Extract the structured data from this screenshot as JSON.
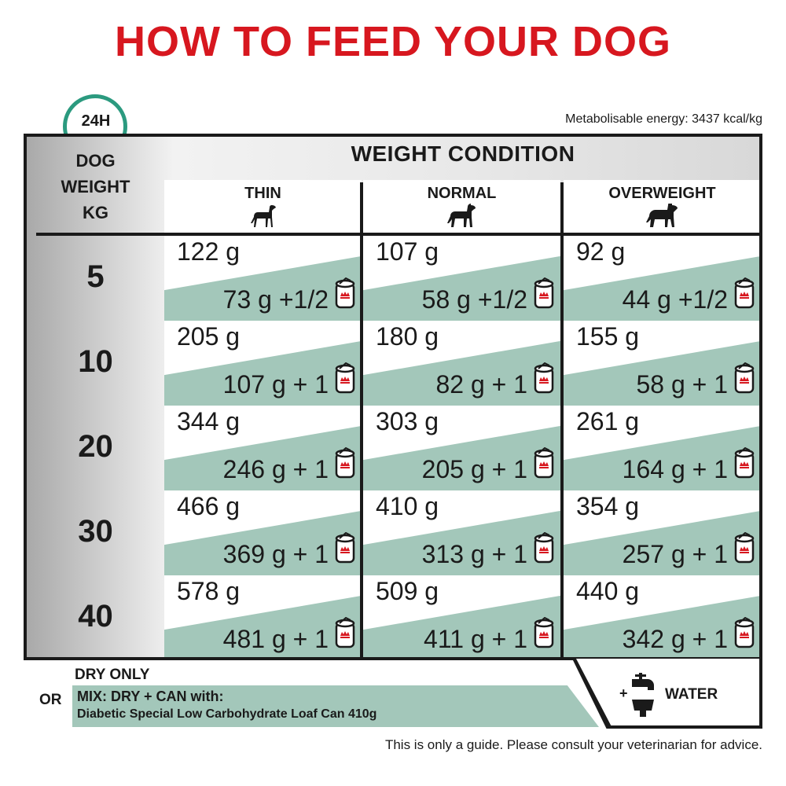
{
  "title": "HOW TO FEED YOUR DOG",
  "badge": "24H",
  "energy": "Metabolisable energy: 3437 kcal/kg",
  "header": {
    "weight_condition": "WEIGHT CONDITION",
    "dog_weight": [
      "DOG",
      "WEIGHT",
      "KG"
    ],
    "columns": [
      "THIN",
      "NORMAL",
      "OVERWEIGHT"
    ]
  },
  "rows": [
    {
      "kg": "5",
      "cells": [
        {
          "dry": "122 g",
          "mix": "73 g +1/2"
        },
        {
          "dry": "107 g",
          "mix": "58 g +1/2"
        },
        {
          "dry": "92 g",
          "mix": "44 g +1/2"
        }
      ]
    },
    {
      "kg": "10",
      "cells": [
        {
          "dry": "205 g",
          "mix": "107 g + 1"
        },
        {
          "dry": "180 g",
          "mix": "82 g + 1"
        },
        {
          "dry": "155 g",
          "mix": "58 g + 1"
        }
      ]
    },
    {
      "kg": "20",
      "cells": [
        {
          "dry": "344 g",
          "mix": "246 g + 1"
        },
        {
          "dry": "303 g",
          "mix": "205 g + 1"
        },
        {
          "dry": "261 g",
          "mix": "164 g + 1"
        }
      ]
    },
    {
      "kg": "30",
      "cells": [
        {
          "dry": "466 g",
          "mix": "369 g + 1"
        },
        {
          "dry": "410 g",
          "mix": "313 g + 1"
        },
        {
          "dry": "354 g",
          "mix": "257 g + 1"
        }
      ]
    },
    {
      "kg": "40",
      "cells": [
        {
          "dry": "578 g",
          "mix": "481 g + 1"
        },
        {
          "dry": "509 g",
          "mix": "411 g + 1"
        },
        {
          "dry": "440 g",
          "mix": "342 g + 1"
        }
      ]
    }
  ],
  "footer": {
    "dry_only": "DRY ONLY",
    "or": "OR",
    "mix_line1": "MIX: DRY + CAN with:",
    "mix_line2": "Diabetic Special Low Carbohydrate Loaf Can 410g",
    "plus": "+",
    "water": "WATER",
    "guide": "This is only a guide. Please consult your veterinarian for advice."
  },
  "colors": {
    "title": "#d7171f",
    "teal": "#a3c7ba",
    "badge": "#2b9a7f"
  },
  "icons": [
    "clock-icon",
    "dog-thin-icon",
    "dog-normal-icon",
    "dog-overweight-icon",
    "can-icon",
    "tap-water-icon"
  ]
}
